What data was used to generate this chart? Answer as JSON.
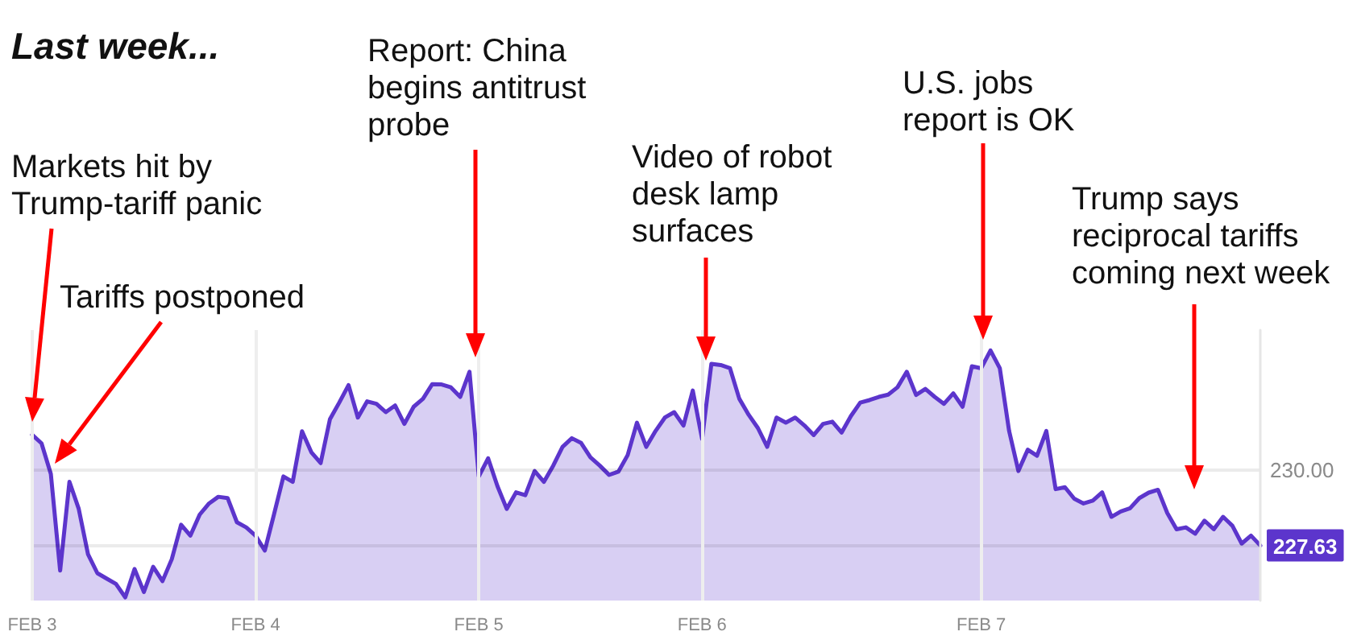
{
  "chart_data": {
    "type": "area",
    "title": "Last week...",
    "categories": [
      "FEB 3",
      null,
      null,
      null,
      null,
      null,
      null,
      null,
      null,
      null,
      null,
      null,
      null,
      null,
      null,
      null,
      null,
      null,
      null,
      null,
      null,
      null,
      null,
      null,
      "FEB 4",
      null,
      null,
      null,
      null,
      null,
      null,
      null,
      null,
      null,
      null,
      null,
      null,
      null,
      null,
      null,
      null,
      null,
      null,
      null,
      null,
      null,
      null,
      null,
      "FEB 5",
      null,
      null,
      null,
      null,
      null,
      null,
      null,
      null,
      null,
      null,
      null,
      null,
      null,
      null,
      null,
      null,
      null,
      null,
      null,
      null,
      null,
      null,
      null,
      "FEB 6",
      null,
      null,
      null,
      null,
      null,
      null,
      null,
      null,
      null,
      null,
      null,
      null,
      null,
      null,
      null,
      null,
      null,
      null,
      null,
      null,
      null,
      null,
      null,
      null,
      null,
      null,
      null,
      null,
      null,
      "FEB 7",
      null,
      null,
      null,
      null,
      null,
      null,
      null,
      null,
      null,
      null,
      null,
      null,
      null,
      null,
      null,
      null,
      null,
      null,
      null,
      null,
      null,
      null,
      null,
      null,
      null,
      null,
      null,
      null,
      null,
      null
    ],
    "values": [
      231.11,
      230.84,
      229.88,
      226.84,
      229.63,
      228.78,
      227.35,
      226.76,
      226.59,
      226.42,
      226.0,
      226.89,
      226.17,
      226.96,
      226.51,
      227.2,
      228.28,
      227.94,
      228.6,
      228.95,
      229.16,
      229.12,
      228.36,
      228.2,
      227.94,
      227.47,
      228.62,
      229.8,
      229.63,
      231.22,
      230.56,
      230.22,
      231.6,
      232.12,
      232.67,
      231.65,
      232.16,
      232.08,
      231.82,
      232.03,
      231.45,
      231.99,
      232.24,
      232.7,
      232.69,
      232.6,
      232.3,
      233.09,
      229.8,
      230.37,
      229.5,
      228.78,
      229.3,
      229.21,
      229.97,
      229.63,
      230.14,
      230.73,
      231.0,
      230.85,
      230.4,
      230.14,
      229.85,
      229.95,
      230.47,
      231.49,
      230.73,
      231.23,
      231.65,
      231.82,
      231.4,
      232.5,
      230.98,
      233.34,
      233.3,
      233.2,
      232.24,
      231.74,
      231.32,
      230.73,
      231.65,
      231.49,
      231.65,
      231.4,
      231.1,
      231.45,
      231.52,
      231.18,
      231.7,
      232.12,
      232.2,
      232.3,
      232.37,
      232.6,
      233.09,
      232.36,
      232.55,
      232.3,
      232.08,
      232.41,
      231.99,
      233.26,
      233.2,
      233.76,
      233.2,
      231.23,
      229.97,
      230.64,
      230.45,
      231.23,
      229.4,
      229.46,
      229.1,
      228.95,
      229.04,
      229.3,
      228.53,
      228.7,
      228.8,
      229.12,
      229.29,
      229.38,
      228.65,
      228.14,
      228.2,
      228.0,
      228.41,
      228.14,
      228.53,
      228.25,
      227.69,
      227.94,
      227.63
    ],
    "color": "#5c35cc",
    "ylim": [
      225.9,
      234.4
    ],
    "yticks": [
      {
        "value": 227.63,
        "label": "227.63"
      },
      {
        "value": 230,
        "label": "230.00"
      }
    ],
    "grid": true,
    "annotations": [
      "Markets hit by Trump-tariff panic",
      "Tariffs postponed",
      "Report: China begins antitrust probe",
      "Video of robot desk lamp surfaces",
      "U.S. jobs report is OK",
      "Trump says reciprocal tariffs coming next week"
    ]
  }
}
